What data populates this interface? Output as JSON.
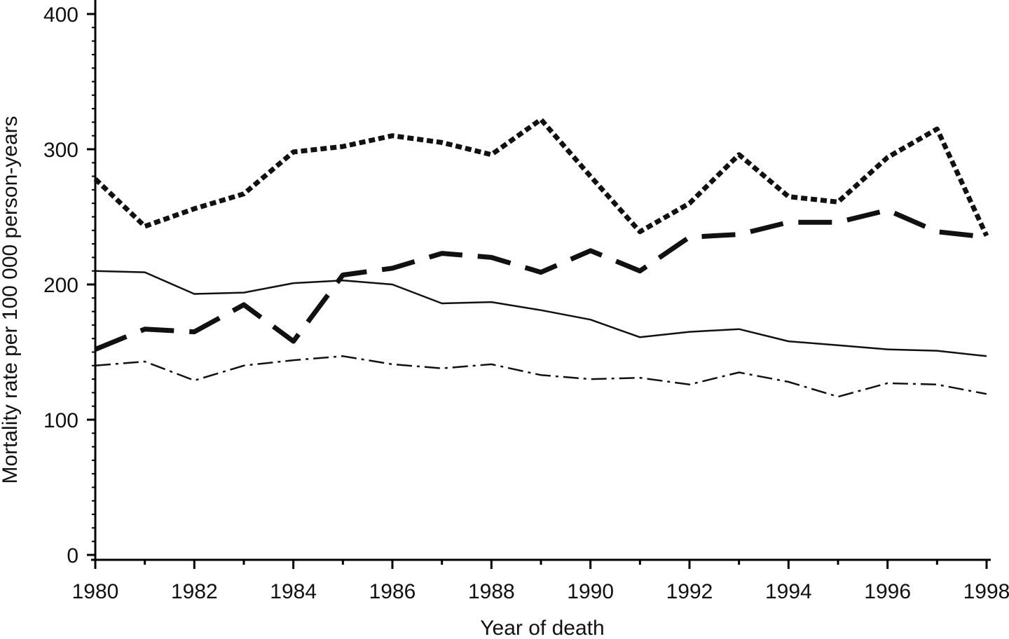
{
  "chart_data": {
    "type": "line",
    "title": "",
    "xlabel": "Year of death",
    "ylabel": "Mortality rate per 100 000 person-years",
    "xlim": [
      1980,
      1998
    ],
    "ylim": [
      0,
      400
    ],
    "x_ticks": [
      1980,
      1982,
      1984,
      1986,
      1988,
      1990,
      1992,
      1994,
      1996,
      1998
    ],
    "y_ticks": [
      0,
      100,
      200,
      300,
      400
    ],
    "grid": false,
    "legend": "none",
    "x": [
      1980,
      1981,
      1982,
      1983,
      1984,
      1985,
      1986,
      1987,
      1988,
      1989,
      1990,
      1991,
      1992,
      1993,
      1994,
      1995,
      1996,
      1997,
      1998
    ],
    "series": [
      {
        "style": "dotted",
        "color": "#111111",
        "values": [
          278,
          243,
          256,
          267,
          298,
          302,
          310,
          305,
          296,
          322,
          280,
          239,
          260,
          296,
          265,
          261,
          294,
          315,
          236
        ]
      },
      {
        "style": "long-dash",
        "color": "#111111",
        "values": [
          152,
          167,
          165,
          185,
          158,
          207,
          212,
          223,
          220,
          209,
          225,
          210,
          235,
          237,
          246,
          246,
          255,
          239,
          235
        ]
      },
      {
        "style": "solid",
        "color": "#111111",
        "values": [
          210,
          209,
          193,
          194,
          201,
          203,
          200,
          186,
          187,
          181,
          174,
          161,
          165,
          167,
          158,
          155,
          152,
          151,
          147
        ]
      },
      {
        "style": "dash-dot",
        "color": "#111111",
        "values": [
          140,
          143,
          129,
          140,
          144,
          147,
          141,
          138,
          141,
          133,
          130,
          131,
          126,
          135,
          128,
          117,
          127,
          126,
          119
        ]
      }
    ]
  }
}
